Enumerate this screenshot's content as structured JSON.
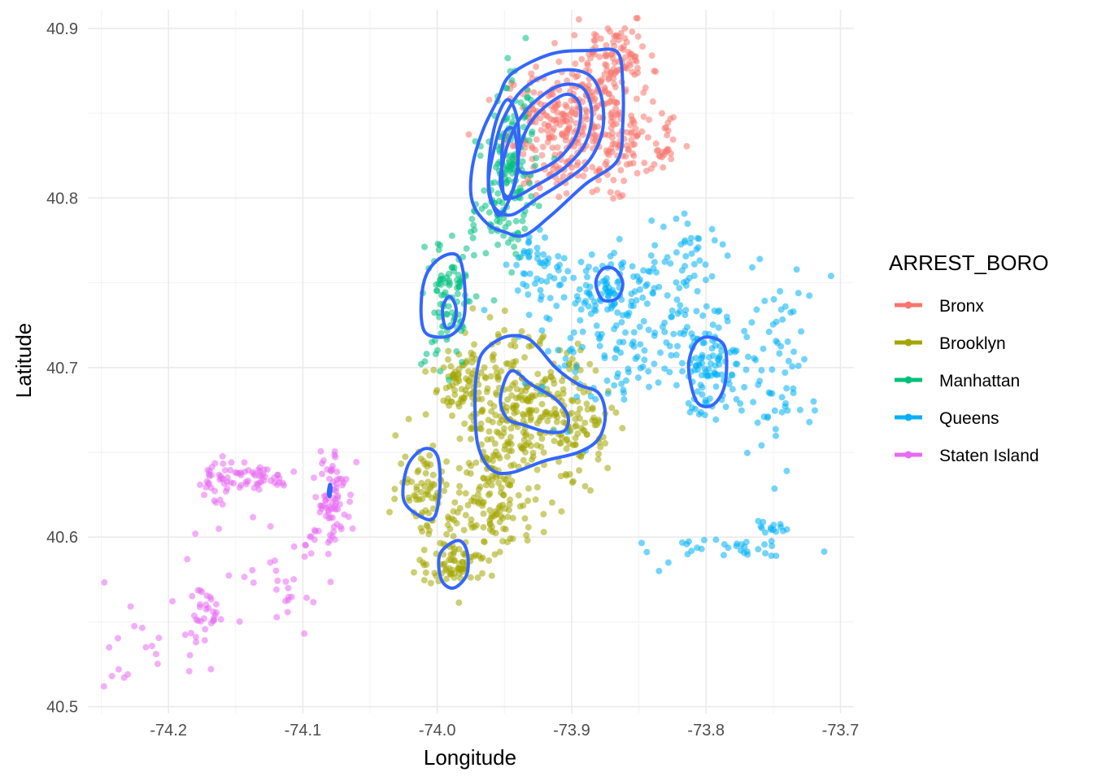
{
  "chart_data": {
    "type": "scatter",
    "title": "",
    "xlabel": "Longitude",
    "ylabel": "Latitude",
    "xlim": [
      -74.26,
      -73.69
    ],
    "ylim": [
      40.496,
      40.911
    ],
    "x_ticks": [
      -74.2,
      -74.1,
      -74.0,
      -73.9,
      -73.8,
      -73.7
    ],
    "x_tick_labels": [
      "-74.2",
      "-74.1",
      "-74.0",
      "-73.9",
      "-73.8",
      "-73.7"
    ],
    "y_ticks": [
      40.5,
      40.6,
      40.7,
      40.8,
      40.9
    ],
    "y_tick_labels": [
      "40.5",
      "40.6",
      "40.7",
      "40.8",
      "40.9"
    ],
    "grid": true,
    "legend": {
      "title": "ARREST_BORO",
      "position": "right",
      "entries": [
        "Bronx",
        "Brooklyn",
        "Manhattan",
        "Queens",
        "Staten Island"
      ]
    },
    "series": [
      {
        "name": "Bronx",
        "color": "#F8766D",
        "clusters": [
          {
            "cx": -73.905,
            "cy": 40.84,
            "sx": 0.022,
            "sy": 0.019,
            "n": 260
          },
          {
            "cx": -73.88,
            "cy": 40.87,
            "sx": 0.012,
            "sy": 0.013,
            "n": 80
          },
          {
            "cx": -73.862,
            "cy": 40.885,
            "sx": 0.009,
            "sy": 0.009,
            "n": 45
          },
          {
            "cx": -73.865,
            "cy": 40.835,
            "sx": 0.014,
            "sy": 0.013,
            "n": 70
          },
          {
            "cx": -73.835,
            "cy": 40.828,
            "sx": 0.008,
            "sy": 0.008,
            "n": 20
          },
          {
            "cx": -73.828,
            "cy": 40.846,
            "sx": 0.002,
            "sy": 0.004,
            "n": 5
          }
        ],
        "points": [
          [
            -73.851,
            40.906
          ],
          [
            -73.855,
            40.898
          ],
          [
            -73.898,
            40.896
          ],
          [
            -73.826,
            40.823
          ],
          [
            -73.832,
            40.818
          ],
          [
            -73.845,
            40.865
          ]
        ]
      },
      {
        "name": "Brooklyn",
        "color": "#A3A500",
        "clusters": [
          {
            "cx": -73.935,
            "cy": 40.672,
            "sx": 0.026,
            "sy": 0.022,
            "n": 300
          },
          {
            "cx": -73.98,
            "cy": 40.69,
            "sx": 0.012,
            "sy": 0.01,
            "n": 70
          },
          {
            "cx": -74.01,
            "cy": 40.63,
            "sx": 0.01,
            "sy": 0.014,
            "n": 70
          },
          {
            "cx": -73.985,
            "cy": 40.585,
            "sx": 0.015,
            "sy": 0.007,
            "n": 80
          },
          {
            "cx": -73.96,
            "cy": 40.615,
            "sx": 0.018,
            "sy": 0.012,
            "n": 90
          },
          {
            "cx": -73.895,
            "cy": 40.665,
            "sx": 0.012,
            "sy": 0.01,
            "n": 50
          },
          {
            "cx": -73.96,
            "cy": 40.645,
            "sx": 0.01,
            "sy": 0.01,
            "n": 30
          }
        ],
        "points": [
          [
            -73.908,
            40.636
          ],
          [
            -73.89,
            40.63
          ],
          [
            -73.893,
            40.648
          ],
          [
            -73.955,
            40.715
          ],
          [
            -73.95,
            40.722
          ],
          [
            -73.935,
            40.706
          ]
        ]
      },
      {
        "name": "Manhattan",
        "color": "#00BF7D",
        "clusters": [
          {
            "cx": -73.945,
            "cy": 40.815,
            "sx": 0.009,
            "sy": 0.024,
            "n": 150
          },
          {
            "cx": -73.99,
            "cy": 40.738,
            "sx": 0.009,
            "sy": 0.02,
            "n": 90
          },
          {
            "cx": -73.965,
            "cy": 40.785,
            "sx": 0.008,
            "sy": 0.008,
            "n": 25
          }
        ],
        "points": [
          [
            -74.012,
            40.702
          ],
          [
            -74.008,
            40.708
          ],
          [
            -74.004,
            40.715
          ],
          [
            -73.975,
            40.78
          ],
          [
            -73.972,
            40.792
          ]
        ]
      },
      {
        "name": "Queens",
        "color": "#00B0F6",
        "clusters": [
          {
            "cx": -73.795,
            "cy": 40.7,
            "sx": 0.016,
            "sy": 0.014,
            "n": 110
          },
          {
            "cx": -73.87,
            "cy": 40.75,
            "sx": 0.014,
            "sy": 0.01,
            "n": 70
          },
          {
            "cx": -73.925,
            "cy": 40.76,
            "sx": 0.012,
            "sy": 0.01,
            "n": 45
          },
          {
            "cx": -73.88,
            "cy": 40.71,
            "sx": 0.028,
            "sy": 0.02,
            "n": 90
          },
          {
            "cx": -73.83,
            "cy": 40.73,
            "sx": 0.022,
            "sy": 0.022,
            "n": 70
          },
          {
            "cx": -73.75,
            "cy": 40.7,
            "sx": 0.014,
            "sy": 0.025,
            "n": 55
          },
          {
            "cx": -73.81,
            "cy": 40.77,
            "sx": 0.012,
            "sy": 0.012,
            "n": 30
          },
          {
            "cx": -73.78,
            "cy": 40.595,
            "sx": 0.025,
            "sy": 0.003,
            "n": 30
          },
          {
            "cx": -73.753,
            "cy": 40.605,
            "sx": 0.005,
            "sy": 0.005,
            "n": 15
          }
        ],
        "points": [
          [
            -73.707,
            40.754
          ],
          [
            -73.74,
            40.639
          ],
          [
            -73.835,
            40.58
          ],
          [
            -73.828,
            40.585
          ],
          [
            -73.784,
            40.766
          ],
          [
            -73.76,
            40.764
          ],
          [
            -73.745,
            40.745
          ],
          [
            -73.735,
            40.733
          ],
          [
            -73.73,
            40.675
          ],
          [
            -73.72,
            40.68
          ]
        ]
      },
      {
        "name": "Staten Island",
        "color": "#E76BF3",
        "clusters": [
          {
            "cx": -74.08,
            "cy": 40.625,
            "sx": 0.006,
            "sy": 0.016,
            "n": 70
          },
          {
            "cx": -74.14,
            "cy": 40.635,
            "sx": 0.02,
            "sy": 0.004,
            "n": 55
          },
          {
            "cx": -74.165,
            "cy": 40.63,
            "sx": 0.004,
            "sy": 0.01,
            "n": 25
          },
          {
            "cx": -74.165,
            "cy": 40.555,
            "sx": 0.01,
            "sy": 0.012,
            "n": 30
          },
          {
            "cx": -74.115,
            "cy": 40.57,
            "sx": 0.014,
            "sy": 0.014,
            "n": 25
          },
          {
            "cx": -74.21,
            "cy": 40.535,
            "sx": 0.016,
            "sy": 0.012,
            "n": 20
          },
          {
            "cx": -74.092,
            "cy": 40.6,
            "sx": 0.006,
            "sy": 0.01,
            "n": 12
          }
        ],
        "points": [
          [
            -74.248,
            40.512
          ],
          [
            -74.242,
            40.518
          ],
          [
            -74.237,
            40.522
          ],
          [
            -74.186,
            40.587
          ],
          [
            -74.18,
            40.602
          ],
          [
            -74.066,
            40.612
          ],
          [
            -74.063,
            40.605
          ]
        ]
      }
    ],
    "density_contours": {
      "color": "#3366FF",
      "rings": [
        [
          [
            -73.945,
            40.873
          ],
          [
            -73.915,
            40.885
          ],
          [
            -73.885,
            40.887
          ],
          [
            -73.866,
            40.886
          ],
          [
            -73.862,
            40.868
          ],
          [
            -73.862,
            40.843
          ],
          [
            -73.866,
            40.822
          ],
          [
            -73.89,
            40.808
          ],
          [
            -73.915,
            40.79
          ],
          [
            -73.935,
            40.778
          ],
          [
            -73.95,
            40.78
          ],
          [
            -73.963,
            40.785
          ],
          [
            -73.974,
            40.798
          ],
          [
            -73.974,
            40.818
          ],
          [
            -73.966,
            40.84
          ],
          [
            -73.955,
            40.858
          ]
        ],
        [
          [
            -73.935,
            40.865
          ],
          [
            -73.91,
            40.875
          ],
          [
            -73.888,
            40.873
          ],
          [
            -73.878,
            40.86
          ],
          [
            -73.877,
            40.84
          ],
          [
            -73.887,
            40.822
          ],
          [
            -73.905,
            40.81
          ],
          [
            -73.925,
            40.8
          ],
          [
            -73.945,
            40.79
          ],
          [
            -73.958,
            40.795
          ],
          [
            -73.962,
            40.808
          ],
          [
            -73.958,
            40.828
          ],
          [
            -73.95,
            40.848
          ]
        ],
        [
          [
            -73.93,
            40.855
          ],
          [
            -73.91,
            40.866
          ],
          [
            -73.892,
            40.865
          ],
          [
            -73.885,
            40.85
          ],
          [
            -73.89,
            40.832
          ],
          [
            -73.905,
            40.818
          ],
          [
            -73.925,
            40.808
          ],
          [
            -73.945,
            40.8
          ],
          [
            -73.953,
            40.808
          ],
          [
            -73.95,
            40.825
          ],
          [
            -73.942,
            40.842
          ]
        ],
        [
          [
            -73.925,
            40.85
          ],
          [
            -73.905,
            40.861
          ],
          [
            -73.894,
            40.855
          ],
          [
            -73.896,
            40.838
          ],
          [
            -73.91,
            40.823
          ],
          [
            -73.93,
            40.815
          ],
          [
            -73.94,
            40.818
          ],
          [
            -73.936,
            40.836
          ]
        ],
        [
          [
            -73.948,
            40.858
          ],
          [
            -73.94,
            40.845
          ],
          [
            -73.94,
            40.82
          ],
          [
            -73.946,
            40.8
          ],
          [
            -73.955,
            40.79
          ],
          [
            -73.962,
            40.81
          ],
          [
            -73.958,
            40.84
          ]
        ],
        [
          [
            -73.943,
            40.84
          ],
          [
            -73.94,
            40.822
          ],
          [
            -73.943,
            40.806
          ],
          [
            -73.95,
            40.8
          ],
          [
            -73.952,
            40.82
          ],
          [
            -73.95,
            40.838
          ]
        ],
        [
          [
            -73.997,
            40.765
          ],
          [
            -73.985,
            40.766
          ],
          [
            -73.98,
            40.752
          ],
          [
            -73.98,
            40.73
          ],
          [
            -73.988,
            40.72
          ],
          [
            -74.0,
            40.718
          ],
          [
            -74.01,
            40.722
          ],
          [
            -74.012,
            40.738
          ],
          [
            -74.008,
            40.755
          ]
        ],
        [
          [
            -73.991,
            40.742
          ],
          [
            -73.986,
            40.735
          ],
          [
            -73.988,
            40.725
          ],
          [
            -73.994,
            40.724
          ],
          [
            -73.996,
            40.735
          ]
        ],
        [
          [
            -73.965,
            40.71
          ],
          [
            -73.95,
            40.718
          ],
          [
            -73.935,
            40.718
          ],
          [
            -73.925,
            40.712
          ],
          [
            -73.912,
            40.7
          ],
          [
            -73.895,
            40.69
          ],
          [
            -73.88,
            40.685
          ],
          [
            -73.875,
            40.672
          ],
          [
            -73.88,
            40.658
          ],
          [
            -73.895,
            40.65
          ],
          [
            -73.92,
            40.645
          ],
          [
            -73.945,
            40.638
          ],
          [
            -73.96,
            40.64
          ],
          [
            -73.97,
            40.655
          ],
          [
            -73.972,
            40.682
          ],
          [
            -73.97,
            40.7
          ]
        ],
        [
          [
            -73.945,
            40.698
          ],
          [
            -73.93,
            40.69
          ],
          [
            -73.913,
            40.682
          ],
          [
            -73.903,
            40.672
          ],
          [
            -73.905,
            40.663
          ],
          [
            -73.918,
            40.662
          ],
          [
            -73.935,
            40.666
          ],
          [
            -73.948,
            40.67
          ],
          [
            -73.953,
            40.682
          ]
        ],
        [
          [
            -74.01,
            40.652
          ],
          [
            -74.0,
            40.648
          ],
          [
            -73.998,
            40.63
          ],
          [
            -74.002,
            40.612
          ],
          [
            -74.012,
            40.612
          ],
          [
            -74.025,
            40.622
          ],
          [
            -74.022,
            40.642
          ]
        ],
        [
          [
            -73.985,
            40.598
          ],
          [
            -73.978,
            40.592
          ],
          [
            -73.978,
            40.578
          ],
          [
            -73.988,
            40.57
          ],
          [
            -73.997,
            40.575
          ],
          [
            -73.998,
            40.59
          ]
        ],
        [
          [
            -73.868,
            40.758
          ],
          [
            -73.862,
            40.75
          ],
          [
            -73.866,
            40.741
          ],
          [
            -73.877,
            40.74
          ],
          [
            -73.882,
            40.75
          ],
          [
            -73.877,
            40.758
          ]
        ],
        [
          [
            -73.798,
            40.718
          ],
          [
            -73.786,
            40.712
          ],
          [
            -73.786,
            40.69
          ],
          [
            -73.795,
            40.678
          ],
          [
            -73.807,
            40.68
          ],
          [
            -73.813,
            40.7
          ],
          [
            -73.808,
            40.714
          ]
        ],
        [
          [
            -74.08,
            40.631
          ],
          [
            -74.079,
            40.629
          ],
          [
            -74.08,
            40.624
          ],
          [
            -74.081,
            40.626
          ]
        ]
      ]
    }
  }
}
